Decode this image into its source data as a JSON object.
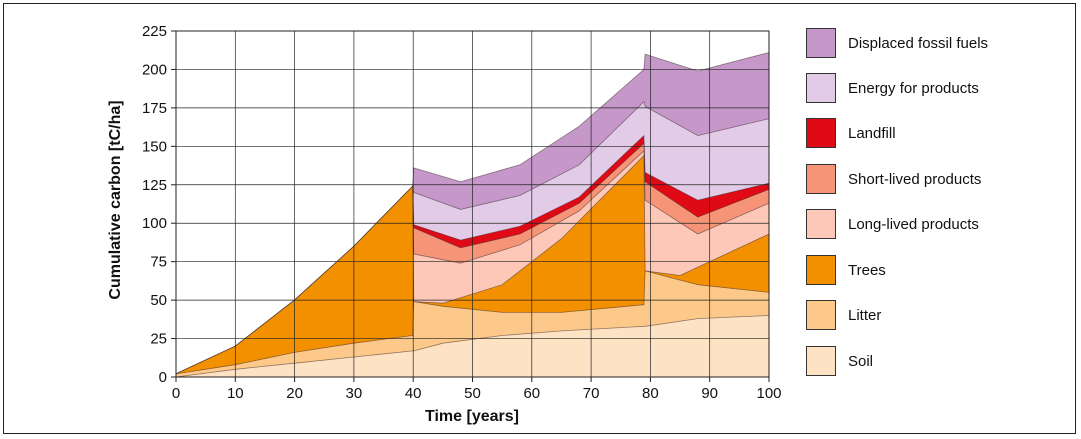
{
  "chart_data": {
    "type": "area",
    "stacked": true,
    "xlabel": "Time [years]",
    "ylabel": "Cumulative carbon [tC/ha]",
    "xlim": [
      0,
      100
    ],
    "ylim": [
      0,
      225
    ],
    "xticks": [
      0,
      10,
      20,
      30,
      40,
      50,
      60,
      70,
      80,
      90,
      100
    ],
    "yticks": [
      0,
      25,
      50,
      75,
      100,
      125,
      150,
      175,
      200,
      225
    ],
    "grid": true,
    "legend_position": "right",
    "series": [
      {
        "name": "Soil",
        "color": "#fde3c4",
        "points": [
          [
            0,
            0
          ],
          [
            10,
            5
          ],
          [
            20,
            9
          ],
          [
            30,
            13
          ],
          [
            39.9,
            17
          ],
          [
            40.1,
            17
          ],
          [
            45,
            22
          ],
          [
            55,
            27
          ],
          [
            65,
            30
          ],
          [
            78.9,
            33
          ],
          [
            79.1,
            33
          ],
          [
            88,
            38
          ],
          [
            100,
            40
          ]
        ]
      },
      {
        "name": "Litter",
        "color": "#fdc98a",
        "points": [
          [
            0,
            2
          ],
          [
            10,
            8
          ],
          [
            20,
            16
          ],
          [
            30,
            22
          ],
          [
            39.9,
            27
          ],
          [
            40.1,
            49
          ],
          [
            45,
            46
          ],
          [
            55,
            42
          ],
          [
            65,
            42
          ],
          [
            78.9,
            47
          ],
          [
            79.1,
            69
          ],
          [
            88,
            60
          ],
          [
            100,
            55
          ]
        ]
      },
      {
        "name": "Trees",
        "color": "#f39000",
        "points": [
          [
            0,
            2
          ],
          [
            10,
            20
          ],
          [
            20,
            50
          ],
          [
            30,
            85
          ],
          [
            39.9,
            124
          ],
          [
            40.1,
            49
          ],
          [
            45,
            48
          ],
          [
            55,
            60
          ],
          [
            65,
            90
          ],
          [
            78.9,
            144
          ],
          [
            79.1,
            69
          ],
          [
            85,
            66
          ],
          [
            100,
            93
          ]
        ]
      },
      {
        "name": "Long-lived products",
        "color": "#fdc8b8",
        "points": [
          [
            0,
            2
          ],
          [
            10,
            20
          ],
          [
            20,
            50
          ],
          [
            30,
            85
          ],
          [
            39.9,
            124
          ],
          [
            40.1,
            80
          ],
          [
            48,
            74
          ],
          [
            58,
            86
          ],
          [
            68,
            108
          ],
          [
            78.9,
            147
          ],
          [
            79.1,
            115
          ],
          [
            88,
            93
          ],
          [
            100,
            113
          ]
        ]
      },
      {
        "name": "Short-lived products",
        "color": "#f59477",
        "points": [
          [
            0,
            2
          ],
          [
            10,
            20
          ],
          [
            20,
            50
          ],
          [
            30,
            85
          ],
          [
            39.9,
            124
          ],
          [
            40.1,
            97
          ],
          [
            48,
            84
          ],
          [
            58,
            93
          ],
          [
            68,
            113
          ],
          [
            78.9,
            152
          ],
          [
            79.1,
            127
          ],
          [
            88,
            104
          ],
          [
            100,
            122
          ]
        ]
      },
      {
        "name": "Landfill",
        "color": "#e00a16",
        "points": [
          [
            0,
            2
          ],
          [
            10,
            20
          ],
          [
            20,
            50
          ],
          [
            30,
            85
          ],
          [
            39.9,
            124
          ],
          [
            40.1,
            99
          ],
          [
            48,
            89
          ],
          [
            58,
            98
          ],
          [
            68,
            117
          ],
          [
            78.9,
            157
          ],
          [
            79.1,
            133
          ],
          [
            88,
            115
          ],
          [
            100,
            126
          ]
        ]
      },
      {
        "name": "Energy for products",
        "color": "#e2cbe6",
        "points": [
          [
            0,
            2
          ],
          [
            10,
            20
          ],
          [
            20,
            50
          ],
          [
            30,
            85
          ],
          [
            39.9,
            124
          ],
          [
            40.1,
            120
          ],
          [
            48,
            109
          ],
          [
            58,
            118
          ],
          [
            68,
            138
          ],
          [
            78.9,
            179
          ],
          [
            79.1,
            176
          ],
          [
            88,
            157
          ],
          [
            100,
            168
          ]
        ]
      },
      {
        "name": "Displaced fossil fuels",
        "color": "#c698c9",
        "points": [
          [
            0,
            2
          ],
          [
            10,
            20
          ],
          [
            20,
            50
          ],
          [
            30,
            85
          ],
          [
            39.9,
            124
          ],
          [
            40.1,
            136
          ],
          [
            48,
            127
          ],
          [
            58,
            138
          ],
          [
            68,
            163
          ],
          [
            78.9,
            200
          ],
          [
            79.1,
            210
          ],
          [
            88,
            199
          ],
          [
            100,
            211
          ]
        ]
      }
    ],
    "legend_order": [
      "Displaced fossil fuels",
      "Energy for products",
      "Landfill",
      "Short-lived products",
      "Long-lived products",
      "Trees",
      "Litter",
      "Soil"
    ]
  }
}
